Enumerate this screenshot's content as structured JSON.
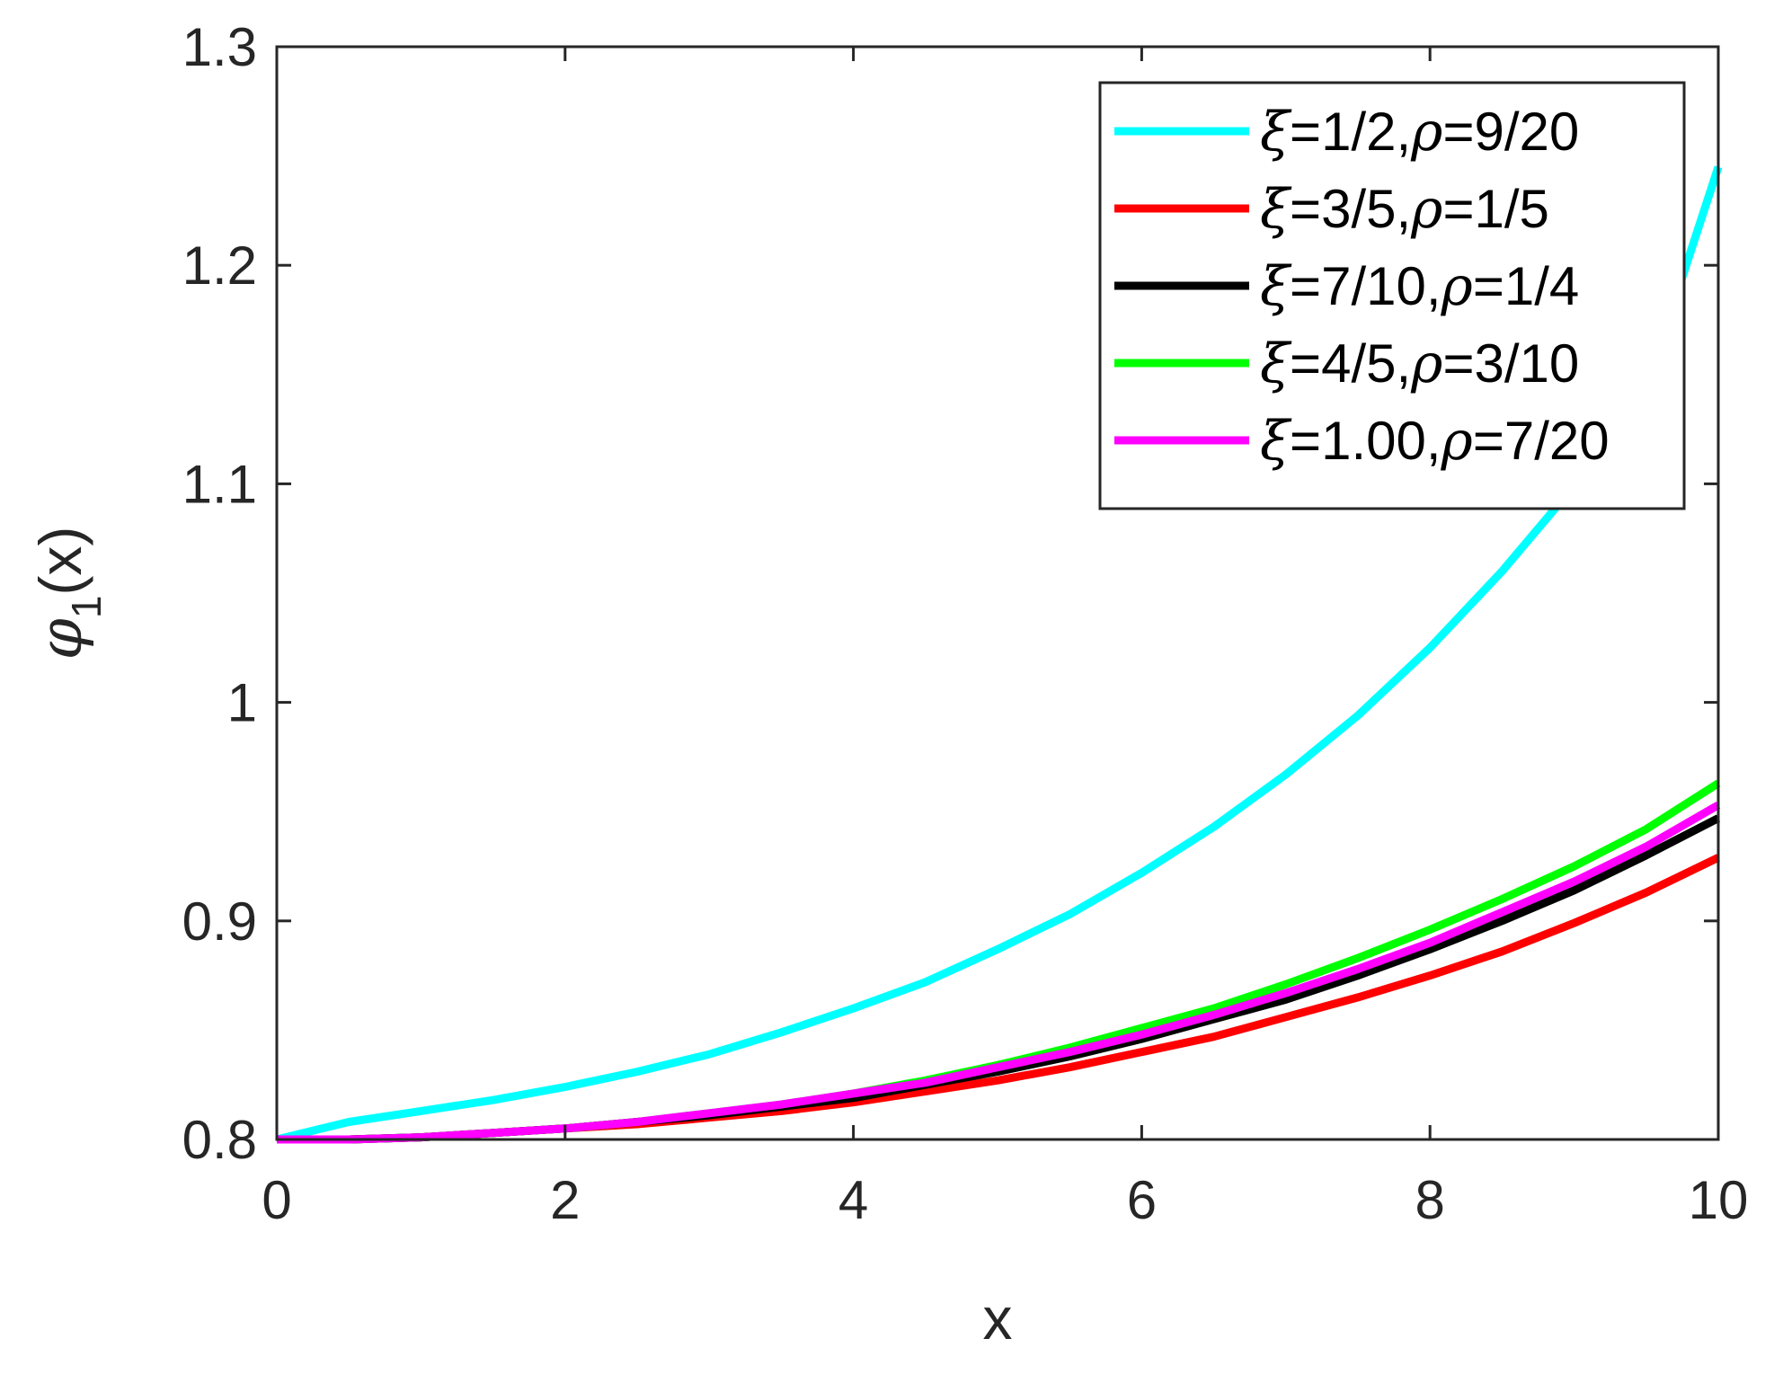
{
  "chart_data": {
    "type": "line",
    "xlabel": "x",
    "ylabel": {
      "symbol": "φ",
      "subscript": "1",
      "suffix": "(x)"
    },
    "xlim": [
      0,
      10
    ],
    "ylim": [
      0.8,
      1.3
    ],
    "xticks": [
      0,
      2,
      4,
      6,
      8,
      10
    ],
    "xtick_labels": [
      "0",
      "2",
      "4",
      "6",
      "8",
      "10"
    ],
    "yticks": [
      0.8,
      0.9,
      1.0,
      1.1,
      1.2,
      1.3
    ],
    "ytick_labels": [
      "0.8",
      "0.9",
      "1",
      "1.1",
      "1.2",
      "1.3"
    ],
    "grid": false,
    "legend_position": "top-right",
    "x": [
      0,
      0.5,
      1,
      1.5,
      2,
      2.5,
      3,
      3.5,
      4,
      4.5,
      5,
      5.5,
      6,
      6.5,
      7,
      7.5,
      8,
      8.5,
      9,
      9.5,
      10
    ],
    "series": [
      {
        "legend": {
          "xi": "1/2",
          "rho": "9/20"
        },
        "color": "#00ffff",
        "values": [
          0.8,
          0.808,
          0.813,
          0.818,
          0.824,
          0.831,
          0.839,
          0.849,
          0.86,
          0.872,
          0.887,
          0.903,
          0.922,
          0.943,
          0.967,
          0.994,
          1.025,
          1.06,
          1.099,
          1.144,
          1.245
        ]
      },
      {
        "legend": {
          "xi": "3/5",
          "rho": "1/5"
        },
        "color": "#ff0000",
        "values": [
          0.8,
          0.8,
          0.801,
          0.803,
          0.805,
          0.807,
          0.81,
          0.813,
          0.817,
          0.822,
          0.827,
          0.833,
          0.84,
          0.847,
          0.856,
          0.865,
          0.875,
          0.886,
          0.899,
          0.913,
          0.929
        ]
      },
      {
        "legend": {
          "xi": "7/10",
          "rho": "1/4"
        },
        "color": "#000000",
        "values": [
          0.8,
          0.8,
          0.801,
          0.803,
          0.805,
          0.808,
          0.811,
          0.815,
          0.819,
          0.825,
          0.831,
          0.838,
          0.846,
          0.855,
          0.864,
          0.875,
          0.887,
          0.9,
          0.914,
          0.93,
          0.947
        ]
      },
      {
        "legend": {
          "xi": "4/5",
          "rho": "3/10"
        },
        "color": "#00ff00",
        "values": [
          0.8,
          0.8,
          0.801,
          0.803,
          0.805,
          0.808,
          0.812,
          0.816,
          0.821,
          0.827,
          0.834,
          0.842,
          0.851,
          0.86,
          0.871,
          0.883,
          0.896,
          0.91,
          0.925,
          0.942,
          0.963
        ]
      },
      {
        "legend": {
          "xi": "1.00",
          "rho": "7/20"
        },
        "color": "#ff00ff",
        "values": [
          0.8,
          0.8,
          0.801,
          0.803,
          0.805,
          0.808,
          0.812,
          0.816,
          0.821,
          0.826,
          0.833,
          0.84,
          0.848,
          0.857,
          0.867,
          0.878,
          0.89,
          0.904,
          0.918,
          0.934,
          0.953
        ]
      }
    ]
  }
}
